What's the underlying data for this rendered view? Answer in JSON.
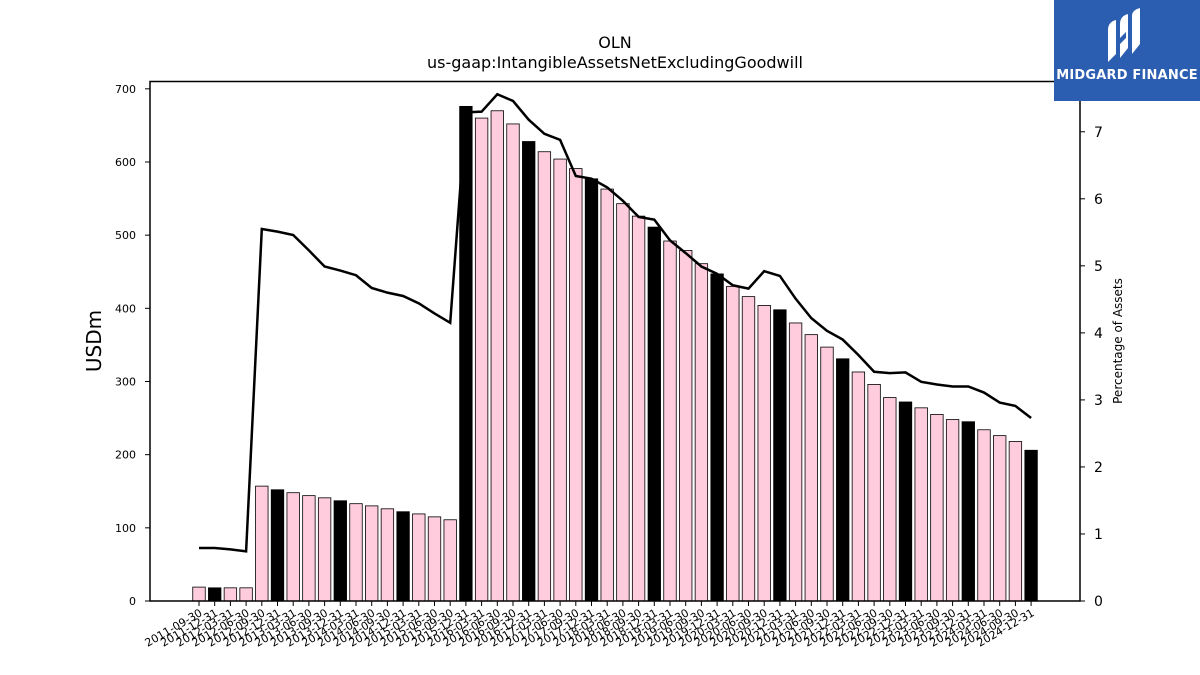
{
  "logo": {
    "text": "MIDGARD FINANCE",
    "icon": "midgard-logo-icon",
    "background": "#2b5db0"
  },
  "chart_data": {
    "type": "bar",
    "title": "OLN",
    "subtitle": "us-gaap:IntangibleAssetsNetExcludingGoodwill",
    "ylabel": "USDm",
    "y2label": "Percentage of Assets",
    "ylim": [
      0,
      710
    ],
    "y2lim": [
      0,
      7.75
    ],
    "yticks": [
      0,
      100,
      200,
      300,
      400,
      500,
      600,
      700
    ],
    "y2ticks": [
      0,
      1,
      2,
      3,
      4,
      5,
      6,
      7
    ],
    "bar_color": "#ffccdd",
    "highlight_color": "#000000",
    "line_color": "#000000",
    "grid": false,
    "categories": [
      "2011-09-30",
      "2011-12-31",
      "2012-03-31",
      "2012-06-30",
      "2012-09-30",
      "2012-12-31",
      "2013-03-31",
      "2013-06-30",
      "2013-09-30",
      "2013-12-31",
      "2014-03-31",
      "2014-06-30",
      "2014-09-30",
      "2014-12-31",
      "2015-03-31",
      "2015-06-30",
      "2015-09-30",
      "2015-12-31",
      "2016-03-31",
      "2016-06-30",
      "2016-09-30",
      "2016-12-31",
      "2017-03-31",
      "2017-06-30",
      "2017-09-30",
      "2017-12-31",
      "2018-03-31",
      "2018-06-30",
      "2018-09-30",
      "2018-12-31",
      "2019-03-31",
      "2019-06-30",
      "2019-09-30",
      "2019-12-31",
      "2020-03-31",
      "2020-06-30",
      "2020-09-30",
      "2020-12-31",
      "2021-03-31",
      "2021-06-30",
      "2021-09-30",
      "2021-12-31",
      "2022-03-31",
      "2022-06-30",
      "2022-09-30",
      "2022-12-31",
      "2023-03-31",
      "2023-06-30",
      "2023-09-30",
      "2023-12-31",
      "2024-03-31",
      "2024-06-30",
      "2024-09-30",
      "2024-12-31"
    ],
    "x_tick_labels": [
      "2011-09-30",
      "2011-12-31",
      "2012-03-31",
      "2012-06-30",
      "2012-09-30",
      "2012-12-31",
      "2013-03-31",
      "2013-06-30",
      "2013-09-30",
      "2013-12-31",
      "2014-03-31",
      "2014-06-30",
      "2014-09-30",
      "2014-12-31",
      "2015-03-31",
      "2015-06-30",
      "2015-09-30",
      "2015-12-31",
      "2016-03-31",
      "2016-06-30",
      "2016-09-30",
      "2016-12-31",
      "2017-03-31",
      "2017-06-30",
      "2017-09-30",
      "2017-12-31",
      "2018-03-31",
      "2018-06-30",
      "2018-09-30",
      "2018-12-31",
      "2019-03-31",
      "2019-06-30",
      "2019-09-30",
      "2019-12-31",
      "2020-03-31",
      "2020-06-30",
      "2020-09-30",
      "2020-12-31",
      "2021-03-31",
      "2021-06-30",
      "2021-09-30",
      "2021-12-31",
      "2022-03-31",
      "2022-06-30",
      "2022-09-30",
      "2022-12-31",
      "2023-03-31",
      "2023-06-30",
      "2023-09-30",
      "2023-12-31",
      "2024-03-31",
      "2024-06-30",
      "2024-09-30",
      "2024-12-31"
    ],
    "series": [
      {
        "values": [
          19,
          18,
          18,
          18,
          157,
          152,
          148,
          144,
          141,
          137,
          133,
          130,
          126,
          122,
          119,
          115,
          111,
          676,
          660,
          670,
          652,
          628,
          614,
          604,
          591,
          577,
          563,
          543,
          526,
          511,
          492,
          479,
          461,
          447,
          430,
          416,
          404,
          398,
          380,
          364,
          347,
          331,
          313,
          296,
          278,
          272,
          264,
          255,
          248,
          245,
          234,
          226,
          218,
          206
        ],
        "highlight": [
          false,
          true,
          false,
          false,
          false,
          true,
          false,
          false,
          false,
          true,
          false,
          false,
          false,
          true,
          false,
          false,
          false,
          true,
          false,
          false,
          false,
          true,
          false,
          false,
          false,
          true,
          false,
          false,
          false,
          true,
          false,
          false,
          false,
          true,
          false,
          false,
          false,
          true,
          false,
          false,
          false,
          true,
          false,
          false,
          false,
          true,
          false,
          false,
          false,
          true,
          false,
          false,
          false,
          true
        ]
      },
      {
        "axis": "right",
        "type": "line",
        "values": [
          0.79,
          0.79,
          0.77,
          0.74,
          5.55,
          5.51,
          5.46,
          5.23,
          4.99,
          4.93,
          4.86,
          4.67,
          4.6,
          4.55,
          4.44,
          4.29,
          4.15,
          7.29,
          7.3,
          7.56,
          7.46,
          7.18,
          6.97,
          6.88,
          6.34,
          6.3,
          6.17,
          5.97,
          5.73,
          5.69,
          5.38,
          5.19,
          4.99,
          4.88,
          4.71,
          4.66,
          4.92,
          4.85,
          4.51,
          4.22,
          4.03,
          3.9,
          3.67,
          3.42,
          3.4,
          3.41,
          3.27,
          3.23,
          3.2,
          3.2,
          3.11,
          2.96,
          2.91,
          2.73
        ]
      }
    ]
  }
}
